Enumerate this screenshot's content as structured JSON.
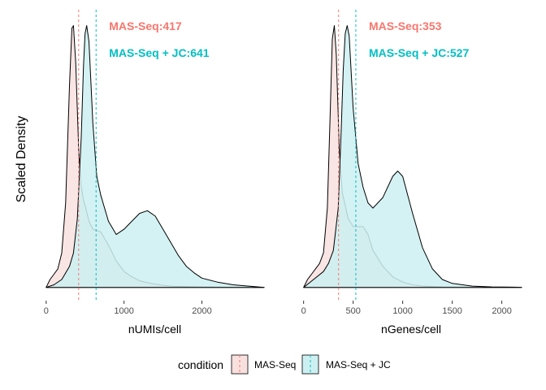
{
  "figure": {
    "ylabel": "Scaled Density",
    "legend": {
      "title": "condition",
      "position": "bottom",
      "entries": [
        {
          "label": "MAS-Seq",
          "fill": "#f8e0de",
          "line": "#f8766d"
        },
        {
          "label": "MAS-Seq + JC",
          "fill": "#ccf0f1",
          "line": "#00bfc4"
        }
      ]
    }
  },
  "chart_data": [
    {
      "type": "area",
      "xlabel": "nUMIs/cell",
      "ylabel": "Scaled Density",
      "xlim": [
        -40,
        2830
      ],
      "ylim": [
        -0.05,
        1.05
      ],
      "x_ticks": [
        0,
        1000,
        2000
      ],
      "tick_labels": [
        "0",
        "1000",
        "2000"
      ],
      "grid": false,
      "annotations": [
        {
          "text": "MAS-Seq:417",
          "color": "#f8766d"
        },
        {
          "text": "MAS-Seq + JC:641",
          "color": "#00bfc4"
        }
      ],
      "vlines": [
        {
          "series": "MAS-Seq",
          "x": 417,
          "color": "#f8766d"
        },
        {
          "series": "MAS-Seq + JC",
          "x": 641,
          "color": "#00bfc4"
        }
      ],
      "series": [
        {
          "name": "MAS-Seq",
          "fill": "#f8e0de",
          "x": [
            0,
            50,
            100,
            150,
            200,
            250,
            300,
            330,
            350,
            380,
            420,
            450,
            480,
            500,
            550,
            600,
            700,
            800,
            900,
            1000,
            1100,
            1200,
            1300,
            1400,
            1500,
            1600,
            1800,
            2000,
            2200,
            2400,
            2600,
            2800
          ],
          "y": [
            0.0,
            0.03,
            0.05,
            0.07,
            0.13,
            0.32,
            0.77,
            0.98,
            0.99,
            0.85,
            0.5,
            0.38,
            0.33,
            0.31,
            0.25,
            0.22,
            0.21,
            0.16,
            0.1,
            0.06,
            0.04,
            0.025,
            0.018,
            0.012,
            0.008,
            0.005,
            0.003,
            0.002,
            0.001,
            0.0005,
            0.0002,
            0.0
          ]
        },
        {
          "name": "MAS-Seq + JC",
          "fill": "#ccf0f1",
          "x": [
            0,
            100,
            200,
            300,
            350,
            400,
            450,
            480,
            500,
            520,
            550,
            600,
            650,
            700,
            800,
            900,
            1000,
            1100,
            1200,
            1300,
            1400,
            1500,
            1600,
            1700,
            1800,
            1900,
            2000,
            2200,
            2400,
            2600,
            2800
          ],
          "y": [
            0.0,
            0.01,
            0.03,
            0.08,
            0.13,
            0.26,
            0.57,
            0.84,
            0.96,
            0.99,
            0.93,
            0.62,
            0.42,
            0.35,
            0.25,
            0.2,
            0.22,
            0.25,
            0.28,
            0.29,
            0.27,
            0.22,
            0.17,
            0.12,
            0.08,
            0.055,
            0.035,
            0.02,
            0.01,
            0.005,
            0.0
          ]
        }
      ]
    },
    {
      "type": "area",
      "xlabel": "nGenes/cell",
      "ylabel": "Scaled Density",
      "xlim": [
        -30,
        2200
      ],
      "ylim": [
        -0.05,
        1.05
      ],
      "x_ticks": [
        0,
        500,
        1000,
        1500,
        2000
      ],
      "tick_labels": [
        "0",
        "500",
        "1000",
        "1500",
        "2000"
      ],
      "grid": false,
      "annotations": [
        {
          "text": "MAS-Seq:353",
          "color": "#f8766d"
        },
        {
          "text": "MAS-Seq + JC:527",
          "color": "#00bfc4"
        }
      ],
      "vlines": [
        {
          "series": "MAS-Seq",
          "x": 353,
          "color": "#f8766d"
        },
        {
          "series": "MAS-Seq + JC",
          "x": 527,
          "color": "#00bfc4"
        }
      ],
      "series": [
        {
          "name": "MAS-Seq",
          "fill": "#f8e0de",
          "x": [
            0,
            40,
            80,
            120,
            160,
            200,
            240,
            270,
            290,
            310,
            330,
            360,
            390,
            420,
            450,
            500,
            550,
            600,
            650,
            700,
            800,
            900,
            1000,
            1100,
            1200,
            1400,
            1600,
            1800,
            2000,
            2200
          ],
          "y": [
            0.0,
            0.03,
            0.05,
            0.07,
            0.09,
            0.13,
            0.3,
            0.68,
            0.94,
            0.99,
            0.88,
            0.52,
            0.36,
            0.31,
            0.26,
            0.23,
            0.23,
            0.23,
            0.2,
            0.14,
            0.08,
            0.04,
            0.02,
            0.01,
            0.005,
            0.002,
            0.001,
            0.0005,
            0.0002,
            0.0
          ]
        },
        {
          "name": "MAS-Seq + JC",
          "fill": "#ccf0f1",
          "x": [
            0,
            100,
            200,
            250,
            300,
            350,
            380,
            400,
            420,
            440,
            460,
            500,
            550,
            600,
            650,
            700,
            800,
            900,
            950,
            1000,
            1100,
            1200,
            1300,
            1400,
            1500,
            1700,
            1900,
            2100,
            2200
          ],
          "y": [
            0.0,
            0.03,
            0.06,
            0.09,
            0.14,
            0.3,
            0.6,
            0.82,
            0.96,
            0.99,
            0.95,
            0.68,
            0.47,
            0.38,
            0.32,
            0.3,
            0.34,
            0.42,
            0.44,
            0.42,
            0.28,
            0.15,
            0.07,
            0.03,
            0.015,
            0.005,
            0.002,
            0.001,
            0.0
          ]
        }
      ]
    }
  ]
}
